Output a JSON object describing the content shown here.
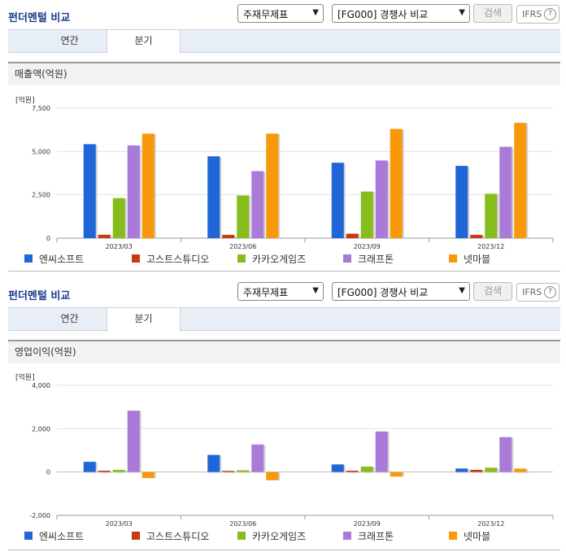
{
  "colors": {
    "series": [
      "#2066d8",
      "#c83a12",
      "#86bd1c",
      "#a97ad8",
      "#f8980a"
    ]
  },
  "sections": [
    {
      "title": "펀더멘털 비교",
      "select1": "주재무제표",
      "select2": "[FG000] 경쟁사 비교",
      "search_label": "검색",
      "ifrs_label": "IFRS",
      "ifrs_help": "?",
      "tabs": [
        {
          "label": "연간",
          "active": false
        },
        {
          "label": "분기",
          "active": true
        }
      ],
      "chart_title": "매출액(억원)",
      "unit_label": "[억원]",
      "legend": [
        "엔씨소프트",
        "고스트스튜디오",
        "카카오게임즈",
        "크래프톤",
        "넷마블"
      ],
      "chart_data": {
        "type": "bar",
        "categories": [
          "2023/03",
          "2023/06",
          "2023/09",
          "2023/12"
        ],
        "ylim": [
          0,
          7500
        ],
        "yticks": [
          "0",
          "2,500",
          "5,000",
          "7,500"
        ],
        "ytick_values": [
          0,
          2500,
          5000,
          7500
        ],
        "series": [
          {
            "name": "엔씨소프트",
            "values": [
              5420,
              4720,
              4350,
              4170
            ]
          },
          {
            "name": "고스트스튜디오",
            "values": [
              200,
              190,
              260,
              190
            ]
          },
          {
            "name": "카카오게임즈",
            "values": [
              2310,
              2460,
              2690,
              2560
            ]
          },
          {
            "name": "크래프톤",
            "values": [
              5350,
              3870,
              4480,
              5270
            ]
          },
          {
            "name": "넷마블",
            "values": [
              6030,
              6030,
              6300,
              6650
            ]
          }
        ]
      }
    },
    {
      "title": "펀더멘털 비교",
      "select1": "주재무제표",
      "select2": "[FG000] 경쟁사 비교",
      "search_label": "검색",
      "ifrs_label": "IFRS",
      "ifrs_help": "?",
      "tabs": [
        {
          "label": "연간",
          "active": false
        },
        {
          "label": "분기",
          "active": true
        }
      ],
      "chart_title": "영업이익(억원)",
      "unit_label": "[억원]",
      "legend": [
        "엔씨소프트",
        "고스트스튜디오",
        "카카오게임즈",
        "크래프톤",
        "넷마블"
      ],
      "chart_data": {
        "type": "bar",
        "categories": [
          "2023/03",
          "2023/06",
          "2023/09",
          "2023/12"
        ],
        "ylim": [
          -2000,
          4000
        ],
        "yticks": [
          "-2,000",
          "0",
          "2,000",
          "4,000"
        ],
        "ytick_values": [
          -2000,
          0,
          2000,
          4000
        ],
        "series": [
          {
            "name": "엔씨소프트",
            "values": [
              470,
              790,
              350,
              160
            ]
          },
          {
            "name": "고스트스튜디오",
            "values": [
              60,
              50,
              60,
              100
            ]
          },
          {
            "name": "카카오게임즈",
            "values": [
              100,
              80,
              250,
              200
            ]
          },
          {
            "name": "크래프톤",
            "values": [
              2830,
              1270,
              1870,
              1610
            ]
          },
          {
            "name": "넷마블",
            "values": [
              -280,
              -380,
              -210,
              160
            ]
          }
        ]
      }
    }
  ]
}
